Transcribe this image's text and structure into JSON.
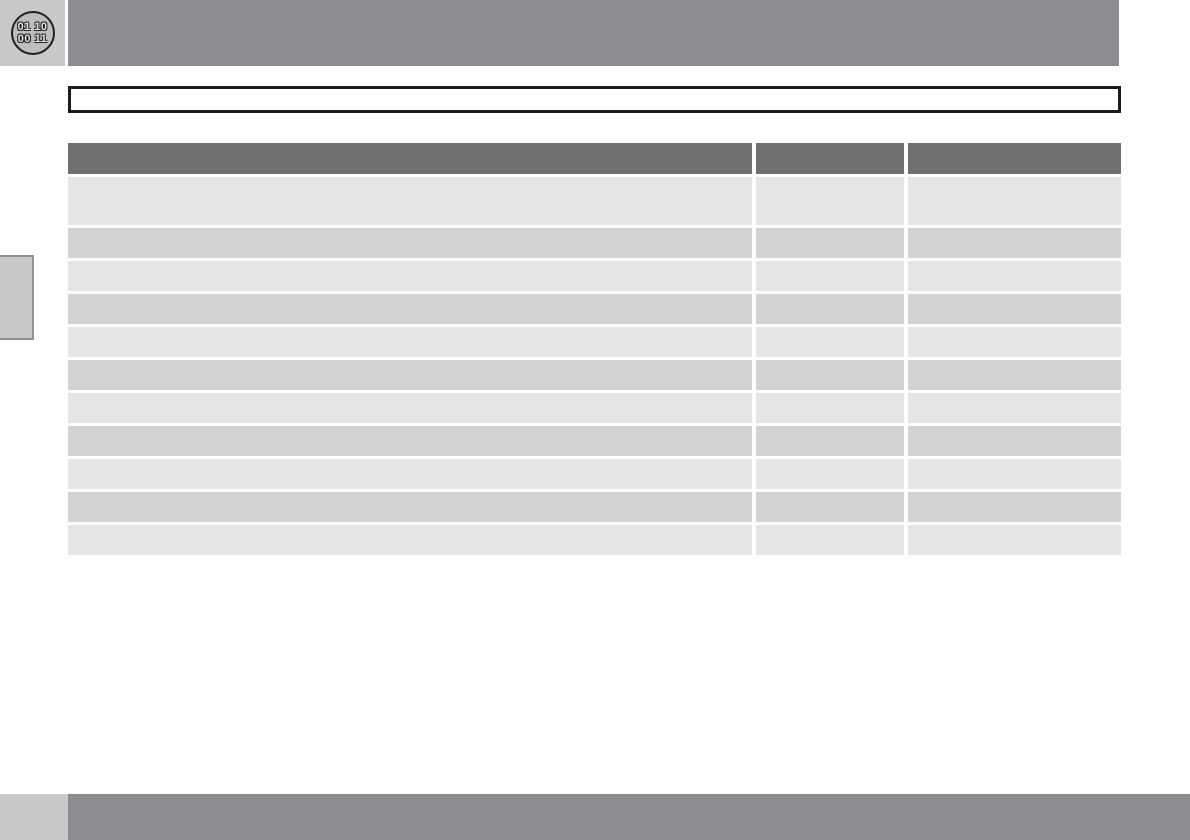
{
  "page": {
    "badge": {
      "line1": "01 10",
      "line2": "00 11"
    },
    "title_box_text": "",
    "colors": {
      "top_bar": "#8b8d90",
      "corner_square": "#c8c9cb",
      "badge_circle_fill": "#bcbdbf",
      "badge_outline": "#1f1f1f",
      "table_header_bg": "#6e7072",
      "row_light": "#e5e6e8",
      "row_dark": "#d2d3d5",
      "bottom_bar": "#8b8d90",
      "title_box_border": "#1c1c1c"
    },
    "table": {
      "columns": [
        "",
        "",
        ""
      ],
      "rows": [
        [
          "",
          "",
          ""
        ],
        [
          "",
          "",
          ""
        ],
        [
          "",
          "",
          ""
        ],
        [
          "",
          "",
          ""
        ],
        [
          "",
          "",
          ""
        ],
        [
          "",
          "",
          ""
        ],
        [
          "",
          "",
          ""
        ],
        [
          "",
          "",
          ""
        ],
        [
          "",
          "",
          ""
        ],
        [
          "",
          "",
          ""
        ],
        [
          "",
          "",
          ""
        ]
      ]
    }
  }
}
